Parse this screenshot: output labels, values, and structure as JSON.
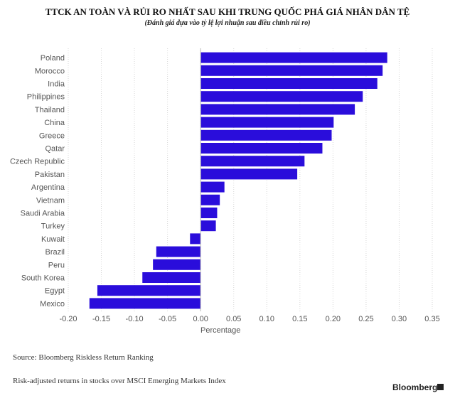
{
  "header": {
    "title": "TTCK AN TOÀN VÀ RỦI RO NHẤT SAU KHI TRUNG QUỐC PHÁ GIÁ NHÂN DÂN TỆ",
    "subtitle": "(Đánh giá dựa vào tỷ lệ lợi nhuận sau điều chỉnh rủi ro)"
  },
  "footer": {
    "source": "Source: Bloomberg Riskless Return Ranking",
    "note": "Risk-adjusted returns in stocks over MSCI Emerging Markets Index",
    "brand": "Bloomberg",
    "brand_icon": "bloomberg-logo-icon"
  },
  "colors": {
    "bar": "#2a0ddb",
    "grid": "#d7d7d7",
    "axis_text": "#555555"
  },
  "chart_data": {
    "type": "bar",
    "orientation": "horizontal",
    "categories": [
      "Poland",
      "Morocco",
      "India",
      "Philippines",
      "Thailand",
      "China",
      "Greece",
      "Qatar",
      "Czech Republic",
      "Pakistan",
      "Argentina",
      "Vietnam",
      "Saudi Arabia",
      "Turkey",
      "Kuwait",
      "Brazil",
      "Peru",
      "South Korea",
      "Egypt",
      "Mexico"
    ],
    "values": [
      0.282,
      0.275,
      0.267,
      0.245,
      0.233,
      0.201,
      0.198,
      0.184,
      0.157,
      0.146,
      0.036,
      0.029,
      0.025,
      0.023,
      -0.016,
      -0.067,
      -0.072,
      -0.088,
      -0.156,
      -0.168
    ],
    "xlabel": "Percentage",
    "ylabel": "",
    "xlim": [
      -0.2,
      0.35
    ],
    "xticks": [
      "-0.20",
      "-0.15",
      "-0.10",
      "-0.05",
      "0.00",
      "0.05",
      "0.10",
      "0.15",
      "0.20",
      "0.25",
      "0.30",
      "0.35"
    ],
    "grid": true
  }
}
